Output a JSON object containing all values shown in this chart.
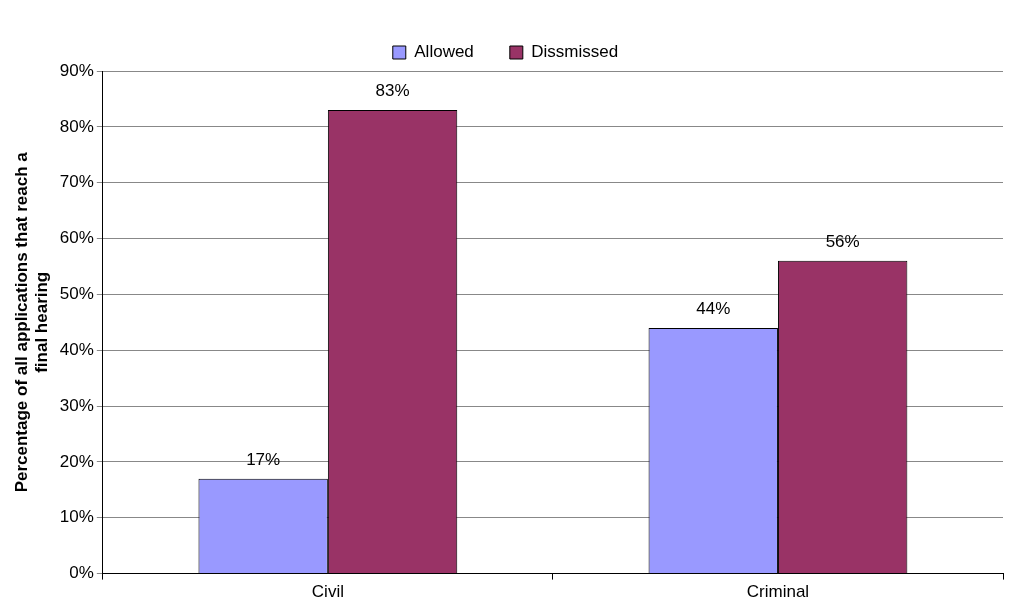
{
  "chart_data": {
    "type": "bar",
    "ylabel": "Percentage of all applications that reach a final hearing",
    "categories": [
      "Civil",
      "Criminal"
    ],
    "series": [
      {
        "name": "Allowed",
        "color": "#9999ff",
        "values": [
          17,
          44
        ],
        "value_labels": [
          "17%",
          "44%"
        ]
      },
      {
        "name": "Dissmissed",
        "color": "#993366",
        "values": [
          83,
          56
        ],
        "value_labels": [
          "83%",
          "56%"
        ]
      }
    ],
    "ylim": [
      0,
      90
    ],
    "yticks": [
      {
        "value": 0,
        "label": "0%"
      },
      {
        "value": 10,
        "label": "10%"
      },
      {
        "value": 20,
        "label": "20%"
      },
      {
        "value": 30,
        "label": "30%"
      },
      {
        "value": 40,
        "label": "40%"
      },
      {
        "value": 50,
        "label": "50%"
      },
      {
        "value": 60,
        "label": "60%"
      },
      {
        "value": 70,
        "label": "70%"
      },
      {
        "value": 80,
        "label": "80%"
      },
      {
        "value": 90,
        "label": "90%"
      }
    ],
    "grid": "y",
    "legend": "top"
  }
}
